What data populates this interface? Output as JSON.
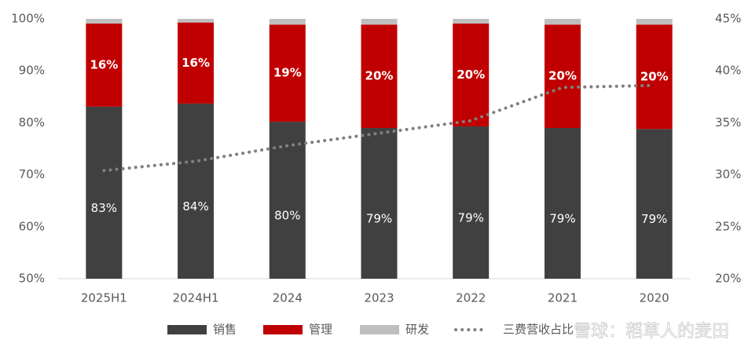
{
  "chart_data": {
    "type": "bar",
    "stacked": true,
    "categories": [
      "2025H1",
      "2024H1",
      "2024",
      "2023",
      "2022",
      "2021",
      "2020"
    ],
    "series": [
      {
        "name": "销售",
        "color": "#404040",
        "values": [
          83.1,
          83.7,
          80.2,
          79.0,
          79.3,
          79.0,
          78.8
        ],
        "value_labels": [
          "83%",
          "84%",
          "80%",
          "79%",
          "79%",
          "79%",
          "79%"
        ]
      },
      {
        "name": "管理",
        "color": "#c00000",
        "values": [
          16.0,
          15.6,
          18.7,
          19.9,
          19.8,
          19.9,
          20.1
        ],
        "value_labels": [
          "16%",
          "16%",
          "19%",
          "20%",
          "20%",
          "20%",
          "20%"
        ]
      },
      {
        "name": "研发",
        "color": "#bfbfbf",
        "values": [
          0.9,
          0.7,
          1.1,
          1.1,
          0.9,
          1.1,
          1.1
        ]
      },
      {
        "name": "三费营收占比",
        "color": "#808080",
        "type": "line",
        "axis": "y2",
        "values": [
          30.4,
          31.3,
          32.8,
          34.0,
          35.2,
          38.4,
          38.6
        ]
      }
    ],
    "ylim": [
      50,
      100
    ],
    "yticks": [
      {
        "value": 50,
        "label": "50%"
      },
      {
        "value": 60,
        "label": "60%"
      },
      {
        "value": 70,
        "label": "70%"
      },
      {
        "value": 80,
        "label": "80%"
      },
      {
        "value": 90,
        "label": "90%"
      },
      {
        "value": 100,
        "label": "100%"
      }
    ],
    "y2lim": [
      20,
      45
    ],
    "y2ticks": [
      {
        "value": 20,
        "label": "20%"
      },
      {
        "value": 25,
        "label": "25%"
      },
      {
        "value": 30,
        "label": "30%"
      },
      {
        "value": 35,
        "label": "35%"
      },
      {
        "value": 40,
        "label": "40%"
      },
      {
        "value": 45,
        "label": "45%"
      }
    ],
    "legend": "bottom",
    "annotations": [
      "雪球：稻草人的麦田"
    ]
  }
}
